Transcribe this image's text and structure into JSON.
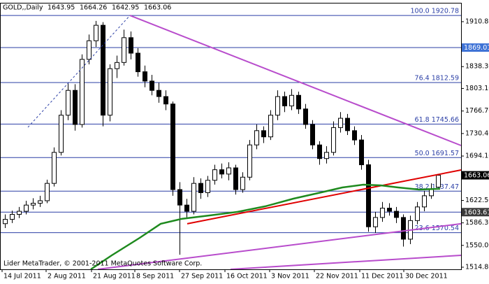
{
  "chart_data": {
    "type": "candlestick",
    "title": "GOLD,,Daily",
    "footer": "Lider MetaTrader, © 2001-2011 MetaQuotes Software Corp.",
    "xlim": [
      -0.7,
      65.3
    ],
    "ylim": [
      1511.4,
      1940.1
    ],
    "yticks": [
      {
        "value": 1910.8,
        "label": "1910.80"
      },
      {
        "value": 1838.3,
        "label": "1838.30"
      },
      {
        "value": 1803.1,
        "label": "1803.10"
      },
      {
        "value": 1766.7,
        "label": "1766.70"
      },
      {
        "value": 1730.4,
        "label": "1730.40"
      },
      {
        "value": 1694.1,
        "label": "1694.10"
      },
      {
        "value": 1622.5,
        "label": "1622.50"
      },
      {
        "value": 1586.3,
        "label": "1586.30"
      },
      {
        "value": 1550,
        "label": "1550.00"
      },
      {
        "value": 1514.8,
        "label": "1514.80"
      }
    ],
    "xticks": [
      {
        "value": -0.4,
        "label": "14 Jul 2011"
      },
      {
        "value": 5.9,
        "label": "2 Aug 2011"
      },
      {
        "value": 12.4,
        "label": "21 Aug 2011"
      },
      {
        "value": 18.6,
        "label": "8 Sep 2011"
      },
      {
        "value": 25,
        "label": "27 Sep 2011"
      },
      {
        "value": 31.5,
        "label": "16 Oct 2011"
      },
      {
        "value": 37.9,
        "label": "3 Nov 2011"
      },
      {
        "value": 44.3,
        "label": "22 Nov 2011"
      },
      {
        "value": 50.8,
        "label": "11 Dec 2011"
      },
      {
        "value": 57.1,
        "label": "30 Dec 2011"
      }
    ],
    "candles": [
      [
        1585,
        1600,
        1578,
        1592
      ],
      [
        1592,
        1606,
        1586,
        1600
      ],
      [
        1600,
        1612,
        1594,
        1605
      ],
      [
        1605,
        1622,
        1600,
        1615
      ],
      [
        1615,
        1626,
        1608,
        1618
      ],
      [
        1618,
        1630,
        1612,
        1622
      ],
      [
        1622,
        1656,
        1618,
        1650
      ],
      [
        1650,
        1708,
        1645,
        1700
      ],
      [
        1700,
        1768,
        1695,
        1760
      ],
      [
        1760,
        1812,
        1752,
        1800
      ],
      [
        1800,
        1810,
        1735,
        1745
      ],
      [
        1745,
        1858,
        1740,
        1850
      ],
      [
        1850,
        1890,
        1842,
        1880
      ],
      [
        1880,
        1912,
        1870,
        1905
      ],
      [
        1905,
        1910,
        1742,
        1760
      ],
      [
        1760,
        1842,
        1750,
        1835
      ],
      [
        1835,
        1856,
        1820,
        1845
      ],
      [
        1845,
        1898,
        1840,
        1885
      ],
      [
        1885,
        1895,
        1850,
        1860
      ],
      [
        1860,
        1868,
        1822,
        1830
      ],
      [
        1830,
        1840,
        1805,
        1815
      ],
      [
        1815,
        1825,
        1792,
        1800
      ],
      [
        1800,
        1812,
        1780,
        1790
      ],
      [
        1790,
        1800,
        1768,
        1778
      ],
      [
        1778,
        1782,
        1630,
        1640
      ],
      [
        1640,
        1652,
        1535,
        1615
      ],
      [
        1615,
        1625,
        1595,
        1605
      ],
      [
        1605,
        1660,
        1600,
        1650
      ],
      [
        1650,
        1658,
        1625,
        1635
      ],
      [
        1635,
        1662,
        1628,
        1655
      ],
      [
        1655,
        1680,
        1648,
        1672
      ],
      [
        1672,
        1682,
        1658,
        1665
      ],
      [
        1665,
        1684,
        1655,
        1675
      ],
      [
        1675,
        1680,
        1632,
        1640
      ],
      [
        1640,
        1668,
        1635,
        1660
      ],
      [
        1660,
        1720,
        1655,
        1712
      ],
      [
        1712,
        1745,
        1705,
        1735
      ],
      [
        1735,
        1742,
        1715,
        1725
      ],
      [
        1725,
        1768,
        1720,
        1760
      ],
      [
        1760,
        1800,
        1752,
        1790
      ],
      [
        1790,
        1798,
        1765,
        1775
      ],
      [
        1775,
        1802,
        1768,
        1792
      ],
      [
        1792,
        1798,
        1762,
        1770
      ],
      [
        1770,
        1778,
        1738,
        1745
      ],
      [
        1745,
        1752,
        1705,
        1712
      ],
      [
        1712,
        1718,
        1680,
        1690
      ],
      [
        1690,
        1710,
        1682,
        1700
      ],
      [
        1700,
        1750,
        1695,
        1740
      ],
      [
        1740,
        1765,
        1732,
        1755
      ],
      [
        1755,
        1762,
        1728,
        1735
      ],
      [
        1735,
        1742,
        1712,
        1720
      ],
      [
        1720,
        1728,
        1672,
        1680
      ],
      [
        1680,
        1688,
        1572,
        1580
      ],
      [
        1580,
        1604,
        1570,
        1595
      ],
      [
        1595,
        1620,
        1588,
        1610
      ],
      [
        1610,
        1618,
        1598,
        1605
      ],
      [
        1605,
        1612,
        1586,
        1595
      ],
      [
        1595,
        1600,
        1548,
        1560
      ],
      [
        1560,
        1598,
        1552,
        1590
      ],
      [
        1590,
        1620,
        1584,
        1612
      ],
      [
        1612,
        1638,
        1605,
        1630
      ],
      [
        1630,
        1650,
        1625,
        1640
      ],
      [
        1643.95,
        1664.26,
        1642.95,
        1663.06
      ]
    ],
    "fib_color": "#2b3fa6",
    "fib_levels": [
      {
        "value": 1920.78,
        "label": "100.0 1920.78"
      },
      {
        "value": 1812.59,
        "label": "76.4 1812.59"
      },
      {
        "value": 1745.66,
        "label": "61.8 1745.66"
      },
      {
        "value": 1691.57,
        "label": "50.0 1691.57"
      },
      {
        "value": 1637.47,
        "label": "38.2 1637.47"
      },
      {
        "value": 1570.54,
        "label": "23.6 1570.54"
      }
    ],
    "hlines": [
      {
        "value": 1869.01,
        "color": "#3f73d6"
      },
      {
        "value": 1603.61,
        "color": "#3a3a3a"
      }
    ],
    "lines": [
      {
        "x": [
          3.3,
          17.9
        ],
        "values": [
          1740.5,
          1920.78
        ],
        "color": "#2b3fa6",
        "dash": true,
        "width": 1
      },
      {
        "x": [
          17.9,
          65.3
        ],
        "values": [
          1920.78,
          1711.1
        ],
        "color": "#b84ccc",
        "width": 2
      },
      {
        "x": [
          13.3,
          65.3
        ],
        "values": [
          1511.4,
          1584.8
        ],
        "color": "#b84ccc",
        "width": 2
      },
      {
        "x": [
          32.3,
          65.3
        ],
        "values": [
          1511.4,
          1534
        ],
        "color": "#b84ccc",
        "width": 2
      },
      {
        "x": [
          26.1,
          65.3
        ],
        "values": [
          1584.8,
          1671.6
        ],
        "color": "#e00000",
        "width": 2
      },
      {
        "x": [
          12.3,
          15.3,
          19.3,
          22.3,
          25.3,
          29.3,
          33.3,
          37.3,
          41.3,
          45.3,
          48.3,
          51.3,
          53.8,
          56.3,
          59.3,
          62.3
        ],
        "values": [
          1511.4,
          1534,
          1562.2,
          1584.8,
          1592.7,
          1598.3,
          1604,
          1613,
          1625.4,
          1635.5,
          1643.4,
          1647.9,
          1646.8,
          1643.4,
          1640,
          1641.2
        ],
        "color": "#1e8a1e",
        "width": 2.5
      }
    ]
  }
}
